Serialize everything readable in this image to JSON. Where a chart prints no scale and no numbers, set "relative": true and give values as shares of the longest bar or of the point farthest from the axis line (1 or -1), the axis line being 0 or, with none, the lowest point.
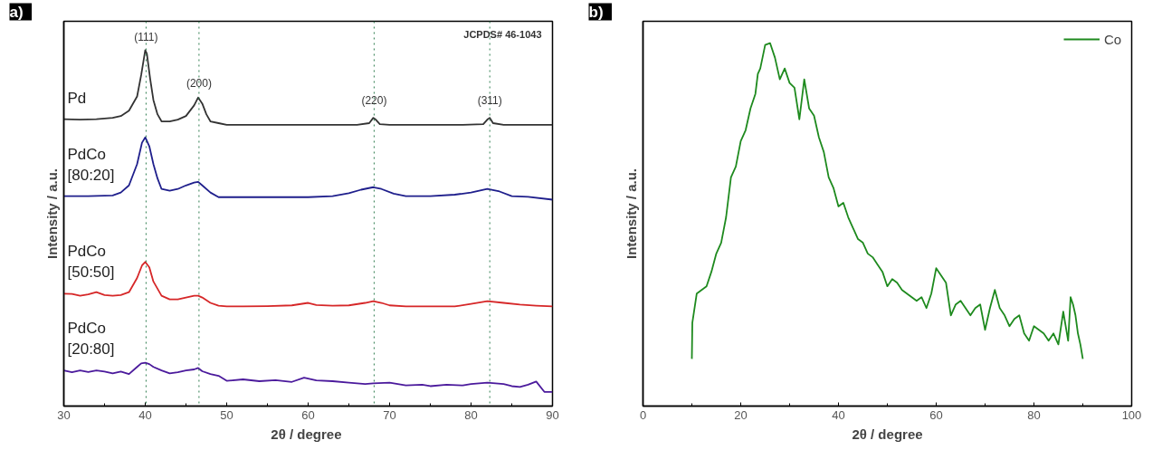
{
  "chart_data": [
    {
      "type": "line",
      "title": "a)",
      "xlabel": "2θ  / degree",
      "ylabel": "Intensity / a.u.",
      "relative": true,
      "legend": false,
      "grid": false,
      "marker": "none",
      "line_style": "solid",
      "xlim": [
        30,
        90
      ],
      "xticks": [
        30,
        40,
        50,
        60,
        70,
        80,
        90
      ],
      "series": [
        {
          "name": "Pd",
          "color": "#333333",
          "x": [
            30,
            32,
            34,
            36,
            37,
            38,
            39,
            39.5,
            40,
            40.2,
            40.6,
            41,
            41.5,
            42,
            43,
            44,
            45,
            46,
            46.5,
            47,
            47.5,
            48,
            49,
            50,
            52,
            55,
            58,
            60,
            63,
            66,
            67.5,
            68,
            68.3,
            68.8,
            70,
            73,
            76,
            79,
            81.5,
            82,
            82.3,
            82.7,
            84,
            87,
            90
          ],
          "values": [
            0.806,
            0.805,
            0.806,
            0.81,
            0.815,
            0.83,
            0.87,
            0.93,
            1.0,
            0.99,
            0.92,
            0.86,
            0.82,
            0.8,
            0.8,
            0.805,
            0.815,
            0.845,
            0.867,
            0.85,
            0.82,
            0.8,
            0.795,
            0.79,
            0.79,
            0.79,
            0.79,
            0.79,
            0.79,
            0.79,
            0.795,
            0.81,
            0.805,
            0.792,
            0.79,
            0.79,
            0.79,
            0.79,
            0.792,
            0.805,
            0.81,
            0.795,
            0.79,
            0.79,
            0.79
          ]
        },
        {
          "name": "PdCo [80:20]",
          "color": "#1f1f8c",
          "x": [
            30,
            33,
            36,
            37,
            38,
            39,
            39.6,
            40,
            40.5,
            41,
            41.5,
            42,
            43,
            44,
            45,
            46,
            46.5,
            47,
            48,
            49,
            50,
            55,
            60,
            63,
            65,
            66.5,
            68,
            69,
            70.5,
            72,
            75,
            78,
            80,
            82,
            83.5,
            85,
            87,
            90
          ],
          "values": [
            0.59,
            0.59,
            0.592,
            0.6,
            0.62,
            0.68,
            0.74,
            0.755,
            0.73,
            0.68,
            0.64,
            0.61,
            0.605,
            0.61,
            0.62,
            0.628,
            0.63,
            0.62,
            0.6,
            0.587,
            0.587,
            0.587,
            0.587,
            0.59,
            0.598,
            0.608,
            0.615,
            0.61,
            0.597,
            0.59,
            0.59,
            0.594,
            0.6,
            0.61,
            0.603,
            0.59,
            0.588,
            0.58
          ]
        },
        {
          "name": "PdCo [50:50]",
          "color": "#d62728",
          "x": [
            30,
            31,
            32,
            33,
            34,
            35,
            36,
            37,
            38,
            39,
            39.6,
            40,
            40.5,
            41,
            42,
            43,
            44,
            45,
            46,
            46.5,
            47,
            48,
            49,
            50,
            52,
            55,
            58,
            60,
            61,
            63,
            65,
            67,
            68,
            69,
            70,
            72,
            75,
            78,
            80,
            82,
            84,
            86,
            88,
            90
          ],
          "values": [
            0.316,
            0.315,
            0.31,
            0.314,
            0.32,
            0.312,
            0.31,
            0.312,
            0.32,
            0.36,
            0.395,
            0.405,
            0.39,
            0.35,
            0.31,
            0.3,
            0.3,
            0.305,
            0.31,
            0.31,
            0.305,
            0.29,
            0.282,
            0.28,
            0.28,
            0.281,
            0.283,
            0.29,
            0.284,
            0.282,
            0.283,
            0.29,
            0.295,
            0.29,
            0.283,
            0.28,
            0.28,
            0.28,
            0.287,
            0.295,
            0.29,
            0.285,
            0.282,
            0.28
          ]
        },
        {
          "name": "PdCo [20:80]",
          "color": "#4b1a9c",
          "x": [
            30,
            31,
            32,
            33,
            34,
            35,
            36,
            37,
            38,
            39,
            39.5,
            40,
            40.5,
            41,
            42,
            43,
            44,
            45,
            46,
            46.5,
            47,
            48,
            49,
            50,
            52,
            54,
            56,
            58,
            59.5,
            61,
            63,
            65,
            67,
            68,
            70,
            72,
            74,
            75,
            77,
            79,
            80,
            82,
            84,
            85,
            86,
            87,
            88,
            89,
            90
          ],
          "values": [
            0.1,
            0.095,
            0.1,
            0.096,
            0.1,
            0.097,
            0.092,
            0.097,
            0.09,
            0.11,
            0.12,
            0.122,
            0.118,
            0.11,
            0.1,
            0.092,
            0.095,
            0.1,
            0.103,
            0.107,
            0.098,
            0.09,
            0.085,
            0.071,
            0.075,
            0.07,
            0.073,
            0.068,
            0.08,
            0.072,
            0.07,
            0.066,
            0.062,
            0.064,
            0.066,
            0.058,
            0.06,
            0.056,
            0.06,
            0.058,
            0.062,
            0.066,
            0.062,
            0.056,
            0.054,
            0.06,
            0.069,
            0.04,
            0.04
          ]
        }
      ],
      "ref_lines": [
        {
          "axis": "x",
          "value": 40.1,
          "color": "#2e7d4f",
          "line_style": "dotted"
        },
        {
          "axis": "x",
          "value": 46.6,
          "color": "#2e7d4f",
          "line_style": "dotted"
        },
        {
          "axis": "x",
          "value": 68.1,
          "color": "#2e7d4f",
          "line_style": "dotted"
        },
        {
          "axis": "x",
          "value": 82.3,
          "color": "#2e7d4f",
          "line_style": "dotted"
        }
      ],
      "annotations": [
        {
          "text": "(111)",
          "x": 40.1,
          "y": 1.02
        },
        {
          "text": "(200)",
          "x": 46.6,
          "y": 0.89
        },
        {
          "text": "(220)",
          "x": 68.1,
          "y": 0.84
        },
        {
          "text": "(311)",
          "x": 82.3,
          "y": 0.84
        },
        "JCPDS# 46-1043"
      ]
    },
    {
      "type": "line",
      "title": "b)",
      "xlabel": "2θ / degree",
      "ylabel": "Intensity / a.u.",
      "relative": true,
      "legend": "top right",
      "grid": false,
      "marker": "none",
      "line_style": "solid",
      "xlim": [
        0,
        100
      ],
      "xticks": [
        0,
        20,
        40,
        60,
        80,
        100
      ],
      "series": [
        {
          "name": "Co",
          "color": "#1e8a1e",
          "x": [
            10,
            10.1,
            11,
            12,
            13,
            14,
            15,
            16,
            17,
            18,
            19,
            20,
            21,
            22,
            23,
            23.5,
            24,
            25,
            26,
            27,
            28,
            29,
            30,
            31,
            32,
            33,
            34,
            35,
            36,
            37,
            38,
            39,
            40,
            41,
            42,
            43,
            44,
            45,
            46,
            47,
            48,
            49,
            50,
            51,
            52,
            53,
            54,
            55,
            56,
            57,
            58,
            59,
            60,
            61,
            62,
            63,
            64,
            65,
            66,
            67,
            68,
            69,
            70,
            71,
            72,
            73,
            74,
            75,
            76,
            77,
            78,
            79,
            80,
            81,
            82,
            83,
            84,
            85,
            86,
            87,
            87.5,
            88,
            88.5,
            89,
            89.5,
            90
          ],
          "values": [
            0.13,
            0.23,
            0.31,
            0.32,
            0.33,
            0.37,
            0.42,
            0.45,
            0.52,
            0.63,
            0.66,
            0.73,
            0.76,
            0.82,
            0.86,
            0.915,
            0.93,
            0.995,
            1.0,
            0.96,
            0.9,
            0.93,
            0.89,
            0.877,
            0.79,
            0.9,
            0.82,
            0.8,
            0.74,
            0.7,
            0.63,
            0.6,
            0.55,
            0.56,
            0.52,
            0.49,
            0.46,
            0.45,
            0.42,
            0.41,
            0.39,
            0.37,
            0.33,
            0.35,
            0.34,
            0.32,
            0.31,
            0.3,
            0.29,
            0.3,
            0.27,
            0.31,
            0.38,
            0.36,
            0.34,
            0.25,
            0.28,
            0.29,
            0.27,
            0.25,
            0.27,
            0.28,
            0.21,
            0.27,
            0.32,
            0.27,
            0.25,
            0.22,
            0.24,
            0.25,
            0.2,
            0.18,
            0.22,
            0.21,
            0.2,
            0.18,
            0.2,
            0.17,
            0.26,
            0.18,
            0.3,
            0.28,
            0.25,
            0.2,
            0.17,
            0.13
          ]
        }
      ]
    }
  ]
}
